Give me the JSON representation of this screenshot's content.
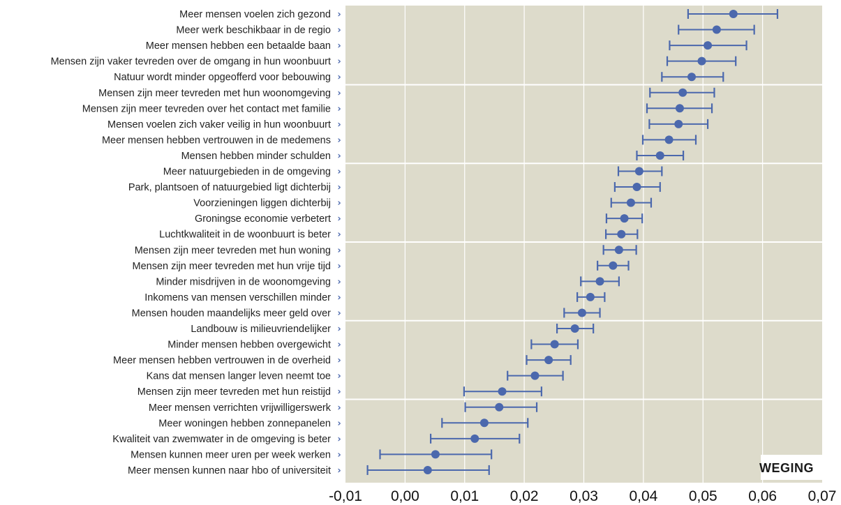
{
  "colors": {
    "plot_background": "#dddbcb",
    "grid_line": "#ffffff",
    "marker": "#4b68ad",
    "chevron": "#4b68ad",
    "label_text": "#222222"
  },
  "chart_data": {
    "type": "scatter",
    "orientation": "horizontal",
    "error_bars": true,
    "badge": "WEGING",
    "xlim": [
      -0.01,
      0.07
    ],
    "xticks": [
      -0.01,
      0.0,
      0.01,
      0.02,
      0.03,
      0.04,
      0.05,
      0.06,
      0.07
    ],
    "xtick_labels": [
      "-0,01",
      "0,00",
      "0,01",
      "0,02",
      "0,03",
      "0,04",
      "0,05",
      "0,06",
      "0,07"
    ],
    "grid": {
      "vertical": true,
      "horizontal_every": 5
    },
    "categories": [
      "Meer mensen voelen zich gezond",
      "Meer werk beschikbaar in de regio",
      "Meer mensen hebben een betaalde baan",
      "Mensen zijn vaker tevreden over de omgang in hun woonbuurt",
      "Natuur wordt minder opgeofferd voor bebouwing",
      "Mensen zijn meer tevreden met hun woonomgeving",
      "Mensen zijn meer tevreden over het contact met familie",
      "Mensen voelen zich vaker veilig in hun woonbuurt",
      "Meer mensen hebben vertrouwen in de medemens",
      "Mensen hebben minder schulden",
      "Meer natuurgebieden in de omgeving",
      "Park, plantsoen of natuurgebied ligt dichterbij",
      "Voorzieningen liggen dichterbij",
      "Groningse economie verbetert",
      "Luchtkwaliteit in de woonbuurt is beter",
      "Mensen zijn meer tevreden met hun woning",
      "Mensen zijn meer tevreden met hun vrije tijd",
      "Minder misdrijven in de woonomgeving",
      "Inkomens van mensen verschillen minder",
      "Mensen houden maandelijks meer geld over",
      "Landbouw is milieuvriendelijker",
      "Minder mensen hebben overgewicht",
      "Meer mensen hebben vertrouwen in de overheid",
      "Kans dat mensen langer leven neemt toe",
      "Mensen zijn meer tevreden met hun reistijd",
      "Meer mensen verrichten vrijwilligerswerk",
      "Meer woningen hebben zonnepanelen",
      "Kwaliteit van zwemwater in de omgeving is beter",
      "Mensen kunnen meer uren per week werken",
      "Meer mensen kunnen naar hbo of universiteit"
    ],
    "values": [
      0.0551,
      0.0523,
      0.0508,
      0.0498,
      0.0481,
      0.0466,
      0.0461,
      0.0459,
      0.0443,
      0.0428,
      0.0393,
      0.0389,
      0.0379,
      0.0368,
      0.0363,
      0.0359,
      0.0349,
      0.0327,
      0.0311,
      0.0297,
      0.0285,
      0.0251,
      0.0241,
      0.0218,
      0.0163,
      0.0158,
      0.0133,
      0.0117,
      0.0051,
      0.0038
    ],
    "lower": [
      0.0475,
      0.0459,
      0.0444,
      0.044,
      0.0431,
      0.0411,
      0.0406,
      0.041,
      0.0399,
      0.0389,
      0.0358,
      0.0352,
      0.0346,
      0.0338,
      0.0337,
      0.0333,
      0.0323,
      0.0295,
      0.0289,
      0.0267,
      0.0255,
      0.0212,
      0.0204,
      0.0172,
      0.0099,
      0.0101,
      0.0062,
      0.0043,
      -0.0042,
      -0.0063
    ],
    "upper": [
      0.0625,
      0.0586,
      0.0573,
      0.0555,
      0.0534,
      0.0519,
      0.0515,
      0.0508,
      0.0488,
      0.0467,
      0.0431,
      0.0428,
      0.0413,
      0.0398,
      0.039,
      0.0388,
      0.0375,
      0.0359,
      0.0335,
      0.0327,
      0.0316,
      0.029,
      0.0278,
      0.0265,
      0.0229,
      0.0221,
      0.0206,
      0.0192,
      0.0145,
      0.0141
    ]
  }
}
